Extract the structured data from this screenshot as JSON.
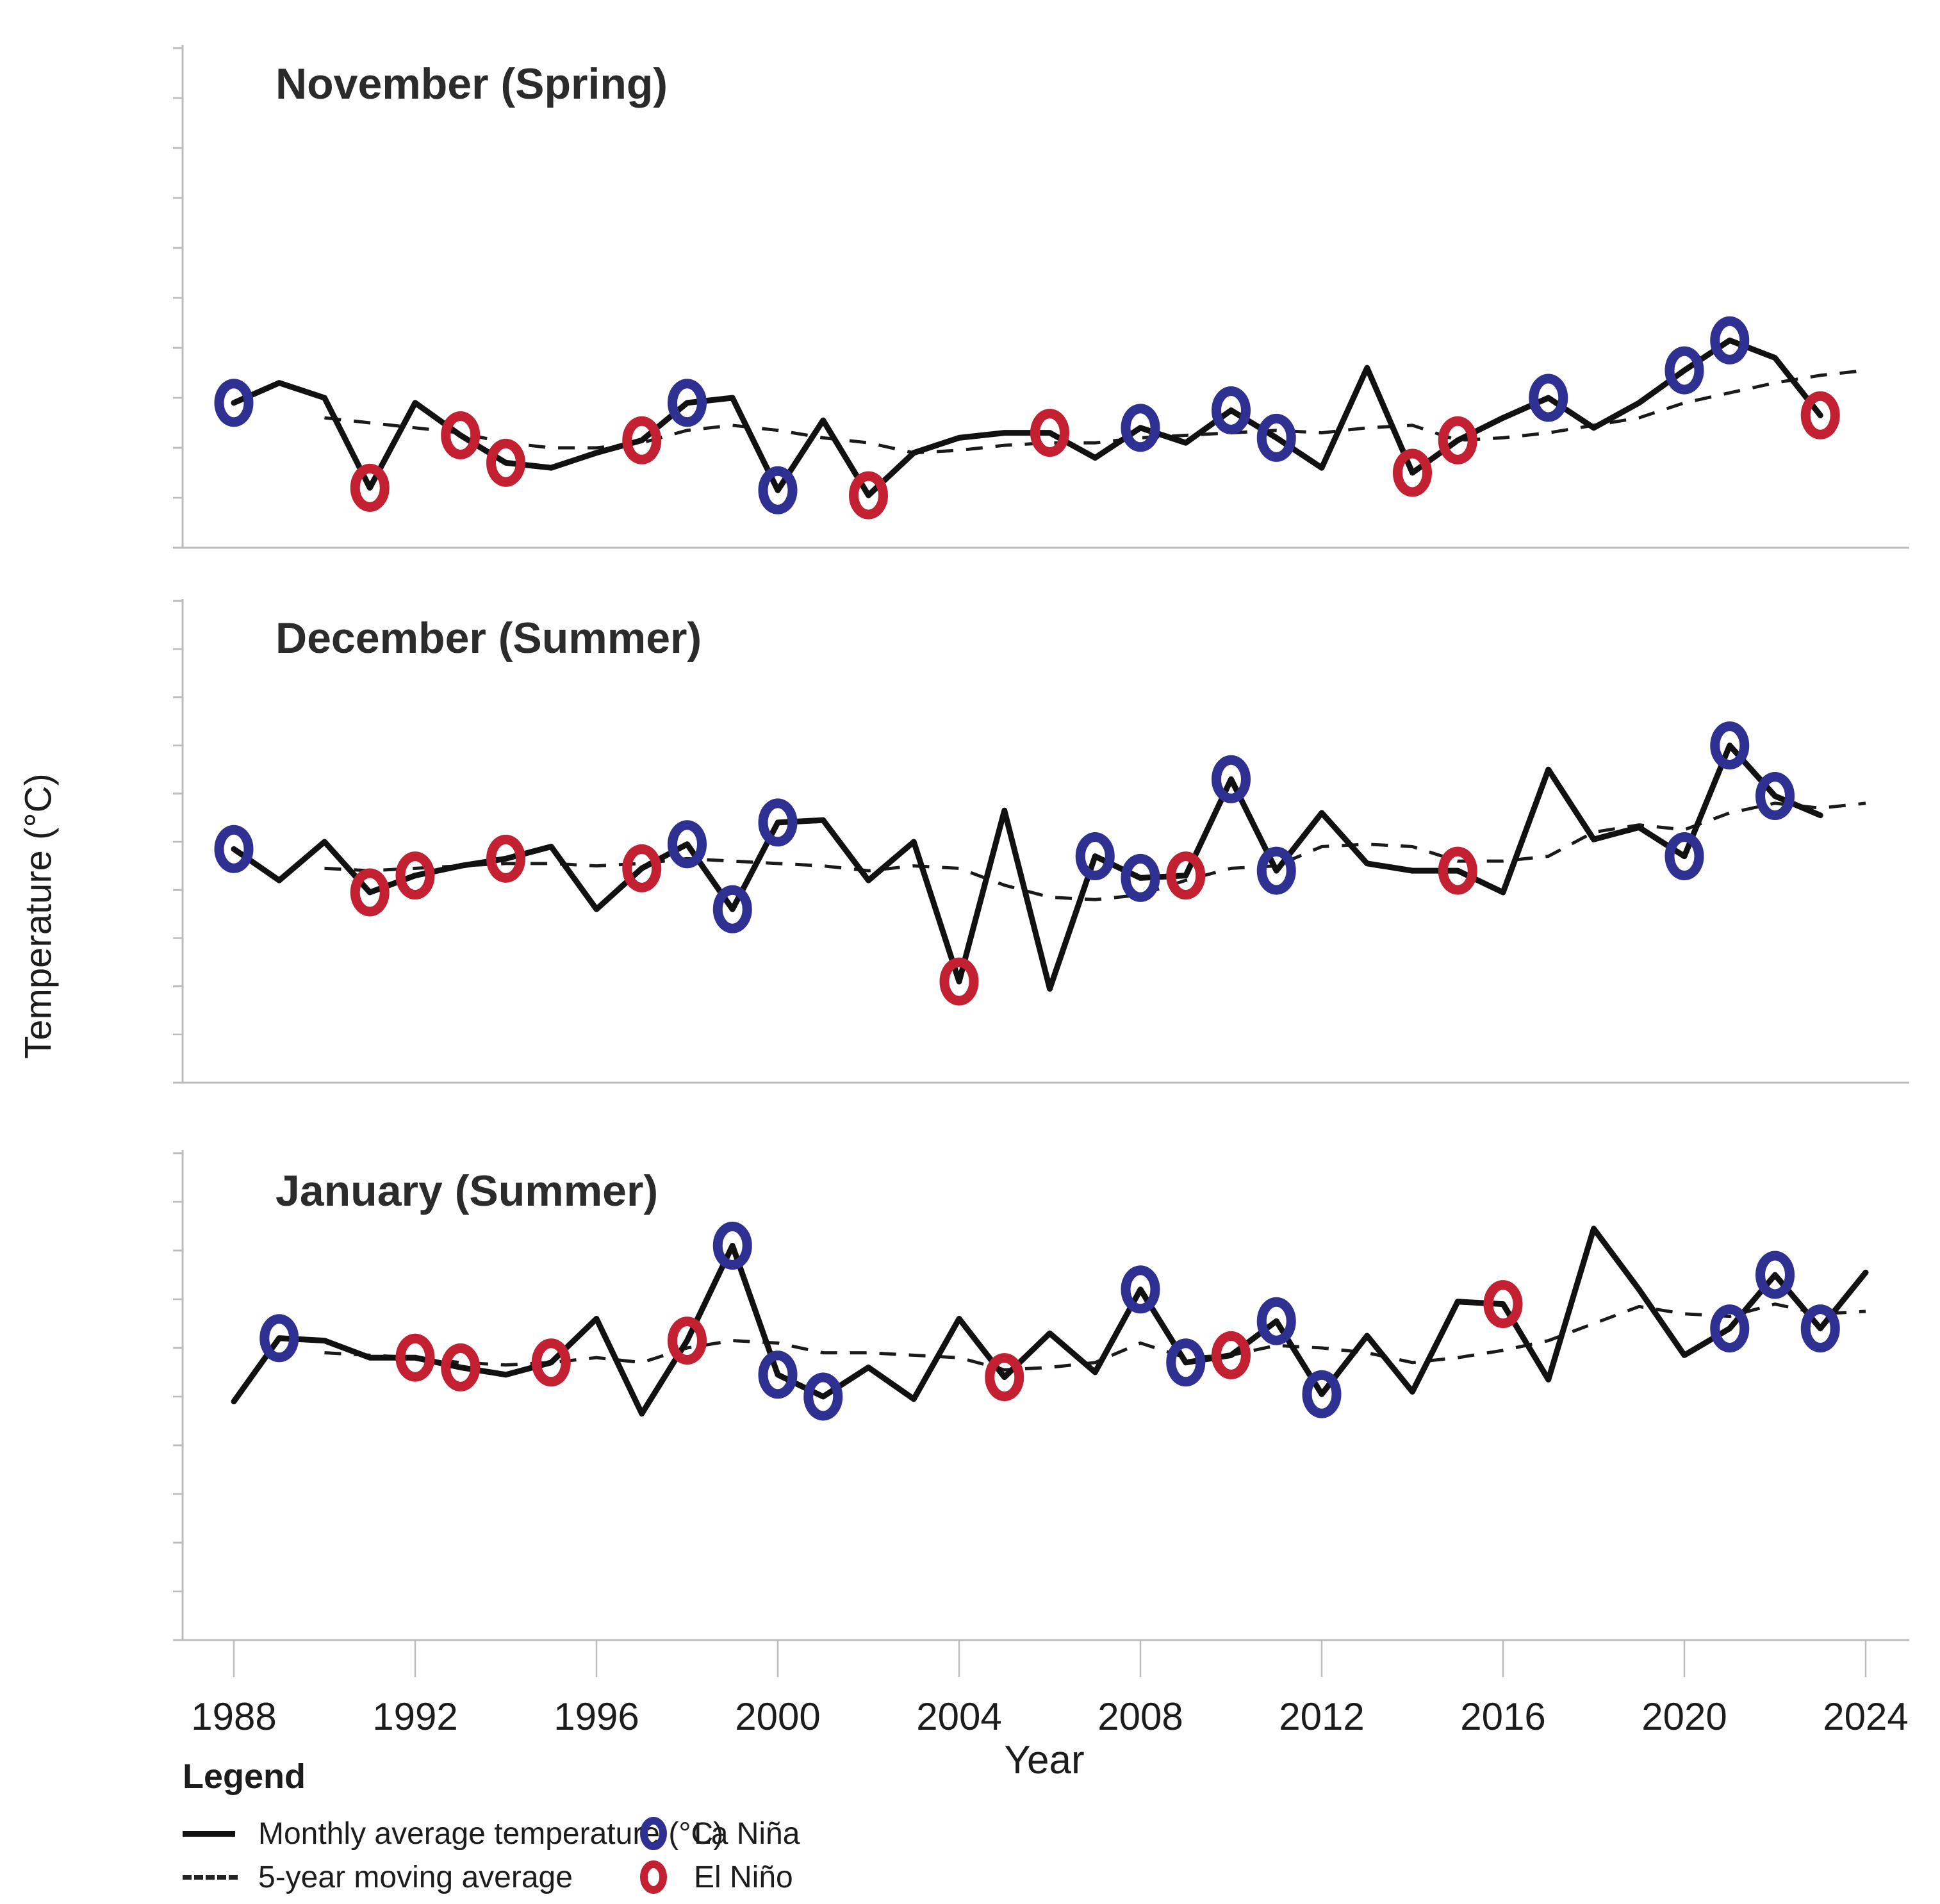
{
  "figure": {
    "y_axis_label": "Temperature (°C)",
    "x_axis_label": "Year",
    "legend": {
      "title": "Legend",
      "items": [
        {
          "label": "Monthly average temperature (°C)",
          "swatch": "solid-line"
        },
        {
          "label": "5-year moving average",
          "swatch": "dashed-line"
        },
        {
          "label": "La Niña",
          "swatch": "blue-ring"
        },
        {
          "label": "El Niño",
          "swatch": "red-ring"
        }
      ]
    },
    "colors": {
      "la_nina": "#2e3192",
      "el_nino": "#c32032",
      "line": "#111111",
      "moving_average": "#1a1a1a",
      "axis": "#bcbcbc",
      "tick_text": "#1c1c1c"
    }
  },
  "chart_data": [
    {
      "type": "line",
      "title": "November (Spring)",
      "xlabel": "Year",
      "ylabel": "Temperature (°C)",
      "ylim": [
        14,
        24
      ],
      "yticks": [
        14,
        16,
        18,
        20,
        22,
        24
      ],
      "xticks": [
        1988,
        1992,
        1996,
        2000,
        2004,
        2008,
        2012,
        2016,
        2020,
        2024
      ],
      "grid": false,
      "show_x_axis": false,
      "series": [
        {
          "name": "Monthly average temperature (°C)",
          "x_start": 1988,
          "values": [
            16.9,
            17.3,
            17.0,
            15.2,
            16.9,
            16.25,
            15.7,
            15.6,
            15.9,
            16.15,
            16.9,
            17.0,
            15.15,
            16.55,
            15.05,
            15.9,
            16.2,
            16.3,
            16.3,
            15.8,
            16.4,
            16.1,
            16.75,
            16.2,
            15.6,
            17.6,
            15.5,
            16.15,
            16.6,
            17.0,
            16.4,
            16.9,
            17.55,
            18.15,
            17.8,
            16.65
          ]
        },
        {
          "name": "5-year moving average",
          "x_start": 1990,
          "values": [
            16.6,
            16.5,
            16.4,
            16.3,
            16.1,
            16.0,
            16.0,
            16.1,
            16.35,
            16.45,
            16.35,
            16.2,
            16.1,
            15.9,
            15.95,
            16.05,
            16.1,
            16.1,
            16.2,
            16.25,
            16.3,
            16.35,
            16.3,
            16.4,
            16.45,
            16.15,
            16.2,
            16.3,
            16.45,
            16.6,
            16.9,
            17.1,
            17.3,
            17.45,
            17.55
          ]
        }
      ],
      "markers": {
        "la_nina_years": [
          1988,
          1998,
          2000,
          2008,
          2010,
          2011,
          2017,
          2020,
          2021
        ],
        "el_nino_years": [
          1991,
          1993,
          1994,
          1997,
          2002,
          2006,
          2014,
          2015,
          2023
        ]
      }
    },
    {
      "type": "line",
      "title": "December (Summer)",
      "xlabel": "Year",
      "ylabel": "Temperature (°C)",
      "ylim": [
        14,
        24
      ],
      "yticks": [
        14,
        16,
        18,
        20,
        22,
        24
      ],
      "xticks": [
        1988,
        1992,
        1996,
        2000,
        2004,
        2008,
        2012,
        2016,
        2020,
        2024
      ],
      "grid": false,
      "show_x_axis": false,
      "series": [
        {
          "name": "Monthly average temperature (°C)",
          "x_start": 1988,
          "values": [
            18.85,
            18.2,
            19.0,
            17.95,
            18.3,
            18.5,
            18.65,
            18.9,
            17.6,
            18.45,
            18.95,
            17.6,
            19.4,
            19.45,
            18.2,
            19.0,
            16.1,
            19.65,
            15.95,
            18.7,
            18.25,
            18.3,
            20.3,
            18.4,
            19.6,
            18.55,
            18.4,
            18.4,
            17.95,
            20.5,
            19.05,
            19.3,
            18.7,
            21.0,
            19.95,
            19.55
          ]
        },
        {
          "name": "5-year moving average",
          "x_start": 1990,
          "values": [
            18.45,
            18.4,
            18.45,
            18.5,
            18.55,
            18.55,
            18.5,
            18.55,
            18.65,
            18.6,
            18.55,
            18.5,
            18.4,
            18.5,
            18.45,
            18.1,
            17.85,
            17.8,
            17.9,
            18.2,
            18.45,
            18.5,
            18.9,
            18.95,
            18.9,
            18.6,
            18.6,
            18.7,
            19.2,
            19.35,
            19.25,
            19.6,
            19.8,
            19.7,
            19.8
          ]
        }
      ],
      "markers": {
        "la_nina_years": [
          1988,
          1998,
          1999,
          2000,
          2007,
          2008,
          2010,
          2011,
          2020,
          2021,
          2022
        ],
        "el_nino_years": [
          1991,
          1992,
          1994,
          1997,
          2004,
          2009,
          2015
        ]
      }
    },
    {
      "type": "line",
      "title": "January (Summer)",
      "xlabel": "Year",
      "ylabel": "Temperature (°C)",
      "ylim": [
        14,
        24
      ],
      "yticks": [
        14,
        16,
        18,
        20,
        22,
        24
      ],
      "xticks": [
        1988,
        1992,
        1996,
        2000,
        2004,
        2008,
        2012,
        2016,
        2020,
        2024
      ],
      "grid": false,
      "show_x_axis": true,
      "series": [
        {
          "name": "Monthly average temperature (°C)",
          "x_start": 1988,
          "values": [
            18.9,
            20.2,
            20.15,
            19.8,
            19.8,
            19.6,
            19.45,
            19.7,
            20.6,
            18.65,
            20.15,
            22.1,
            19.45,
            19.0,
            19.6,
            18.95,
            20.6,
            19.4,
            20.3,
            19.5,
            21.2,
            19.7,
            19.85,
            20.55,
            19.05,
            20.25,
            19.1,
            20.95,
            20.9,
            19.35,
            22.45,
            21.2,
            19.85,
            20.4,
            21.5,
            20.4,
            21.55
          ]
        },
        {
          "name": "5-year moving average",
          "x_start": 1990,
          "values": [
            19.9,
            19.85,
            19.8,
            19.7,
            19.65,
            19.7,
            19.8,
            19.7,
            20.0,
            20.15,
            20.1,
            19.9,
            19.9,
            19.85,
            19.8,
            19.55,
            19.6,
            19.7,
            20.1,
            19.8,
            19.85,
            20.05,
            20.0,
            19.9,
            19.7,
            19.8,
            19.95,
            20.15,
            20.5,
            20.85,
            20.7,
            20.65,
            20.9,
            20.7,
            20.75
          ]
        }
      ],
      "markers": {
        "la_nina_years": [
          1989,
          1999,
          2000,
          2001,
          2008,
          2009,
          2011,
          2012,
          2021,
          2022,
          2023
        ],
        "el_nino_years": [
          1992,
          1993,
          1995,
          1998,
          2005,
          2010,
          2016
        ]
      }
    }
  ]
}
